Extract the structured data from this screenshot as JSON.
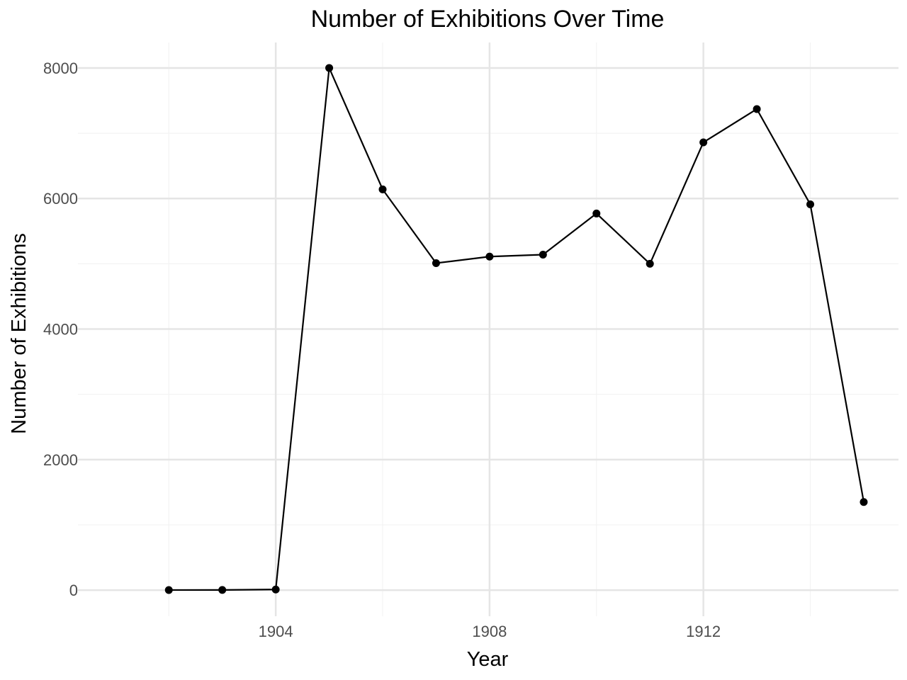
{
  "chart_data": {
    "type": "line",
    "title": "Number of Exhibitions Over Time",
    "xlabel": "Year",
    "ylabel": "Number of Exhibitions",
    "x": [
      1902,
      1903,
      1904,
      1905,
      1906,
      1907,
      1908,
      1909,
      1910,
      1911,
      1912,
      1913,
      1914,
      1915
    ],
    "series": [
      {
        "values": [
          2,
          3,
          10,
          8000,
          6140,
          5010,
          5110,
          5140,
          5770,
          5000,
          6860,
          7370,
          5910,
          1350
        ]
      }
    ],
    "xlim": [
      1900.3,
      1915.65
    ],
    "ylim": [
      -400,
      8390
    ],
    "x_ticks": [
      1904,
      1908,
      1912
    ],
    "x_tick_labels": [
      "1904",
      "1908",
      "1912"
    ],
    "y_ticks": [
      0,
      2000,
      4000,
      6000,
      8000
    ],
    "y_tick_labels": [
      "0",
      "2000",
      "4000",
      "6000",
      "8000"
    ],
    "x_minor_ticks": [
      1902,
      1906,
      1910,
      1914
    ],
    "y_minor_ticks": [
      1000,
      3000,
      5000,
      7000
    ],
    "grid": true,
    "legend": "none",
    "colors": {
      "line": "#000000",
      "point": "#000000",
      "grid_major": "#e5e5e5",
      "grid_minor": "#f3f3f3",
      "tick_text": "#4d4d4d",
      "background": "#ffffff"
    }
  }
}
